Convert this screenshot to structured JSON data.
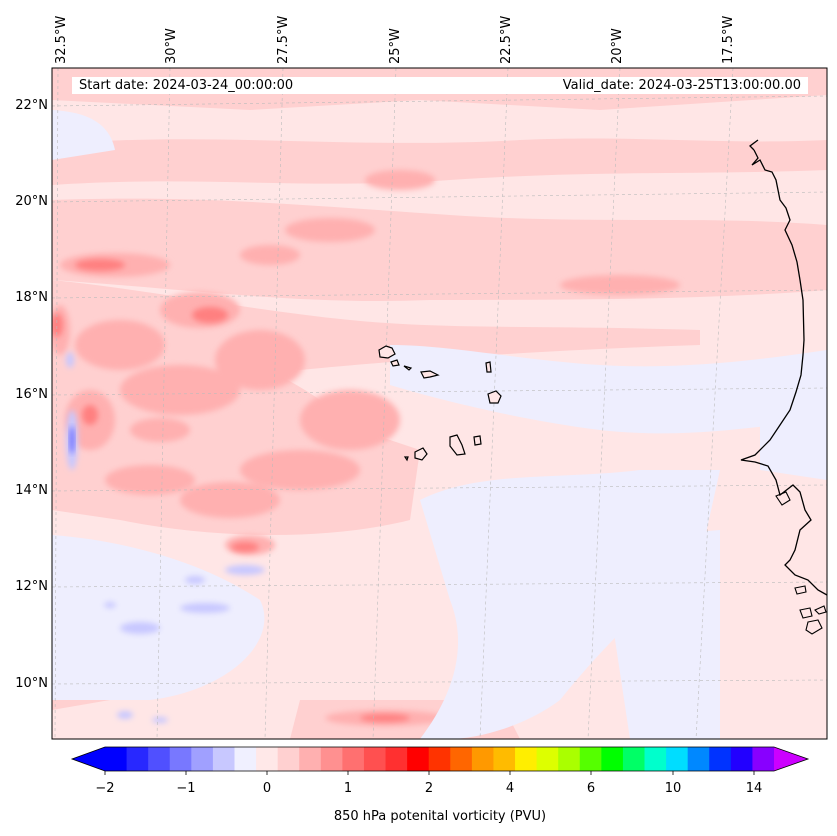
{
  "map": {
    "title_left": "Start date: 2024-03-24_00:00:00",
    "title_right": "Valid_date: 2024-03-25T13:00:00.00",
    "longitude_labels": [
      "32.5°W",
      "30°W",
      "27.5°W",
      "25°W",
      "22.5°W",
      "20°W",
      "17.5°W"
    ],
    "latitude_labels": [
      "22°N",
      "20°N",
      "18°N",
      "16°N",
      "14°N",
      "12°N",
      "10°N"
    ],
    "variable": "850 hPa potential vorticity",
    "region_lon": [
      -32.5,
      -15.5
    ],
    "region_lat": [
      9,
      22.5
    ],
    "gridlines": true
  },
  "colorbar": {
    "label": "850 hPa potenital vorticity (PVU)",
    "tick_labels": [
      "−2",
      "−1",
      "0",
      "1",
      "2",
      "4",
      "6",
      "10",
      "14"
    ],
    "extend": "both",
    "colors": [
      "#0000ff",
      "#2828ff",
      "#5050ff",
      "#7878ff",
      "#a0a0ff",
      "#c8c8ff",
      "#f0f0ff",
      "#ffe8e8",
      "#ffd0d0",
      "#ffb0b0",
      "#ff9090",
      "#ff7070",
      "#ff5050",
      "#ff3030",
      "#ff0000",
      "#ff3300",
      "#ff6600",
      "#ff9900",
      "#ffbb00",
      "#ffee00",
      "#ddff00",
      "#aaff00",
      "#55ff00",
      "#00ff00",
      "#00ff66",
      "#00ffcc",
      "#00ddff",
      "#0088ff",
      "#0033ff",
      "#2200ff",
      "#8800ff"
    ],
    "under_color": "#0000ff",
    "over_color": "#cc00ff"
  }
}
